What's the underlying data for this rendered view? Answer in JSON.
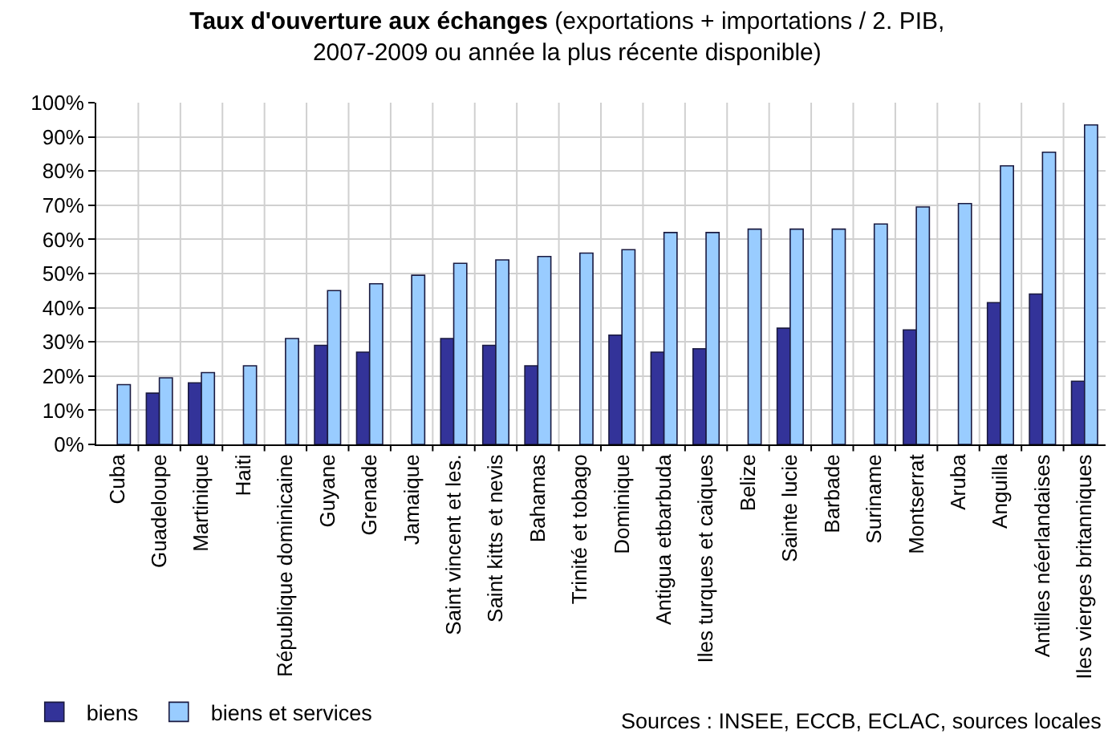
{
  "chart_data": {
    "type": "bar",
    "title": "Taux d'ouverture aux échanges",
    "subtitle": "(exportations + importations / 2. PIB, 2007-2009 ou année la plus récente disponible)",
    "categories": [
      "Cuba",
      "Guadeloupe",
      "Martinique",
      "Haiti",
      "République dominicaine",
      "Guyane",
      "Grenade",
      "Jamaique",
      "Saint vincent et les.",
      "Saint kitts et nevis",
      "Bahamas",
      "Trinité et tobago",
      "Dominique",
      "Antigua etbarbuda",
      "Iles turques et caiques",
      "Belize",
      "Sainte lucie",
      "Barbade",
      "Suriname",
      "Montserrat",
      "Aruba",
      "Anguilla",
      "Antilles néerlandaises",
      "Iles vierges britanniques"
    ],
    "series": [
      {
        "name": "biens",
        "color": "#333399",
        "values": [
          null,
          15,
          18,
          null,
          null,
          29,
          27,
          null,
          31,
          29,
          23,
          null,
          32,
          27,
          28,
          null,
          34,
          null,
          null,
          33.5,
          null,
          41.5,
          44,
          18.5
        ]
      },
      {
        "name": "biens et services",
        "color": "#99ccff",
        "values": [
          17.5,
          19.5,
          21,
          23,
          31,
          45,
          47,
          49.5,
          53,
          54,
          55,
          56,
          57,
          62,
          62,
          63,
          63,
          63,
          64.5,
          69.5,
          70.5,
          81.5,
          85.5,
          93.5
        ]
      }
    ],
    "ylim": [
      0,
      100
    ],
    "yticks": [
      {
        "value": 0,
        "label": "0%"
      },
      {
        "value": 10,
        "label": "10%"
      },
      {
        "value": 20,
        "label": "20%"
      },
      {
        "value": 30,
        "label": "30%"
      },
      {
        "value": 40,
        "label": "40%"
      },
      {
        "value": 50,
        "label": "50%"
      },
      {
        "value": 60,
        "label": "60%"
      },
      {
        "value": 70,
        "label": "70%"
      },
      {
        "value": 80,
        "label": "80%"
      },
      {
        "value": 90,
        "label": "90%"
      },
      {
        "value": 100,
        "label": "100%"
      }
    ],
    "grid": true,
    "legend": "bottom left",
    "annotations": [
      "Sources : INSEE, ECCB, ECLAC, sources locales"
    ]
  }
}
